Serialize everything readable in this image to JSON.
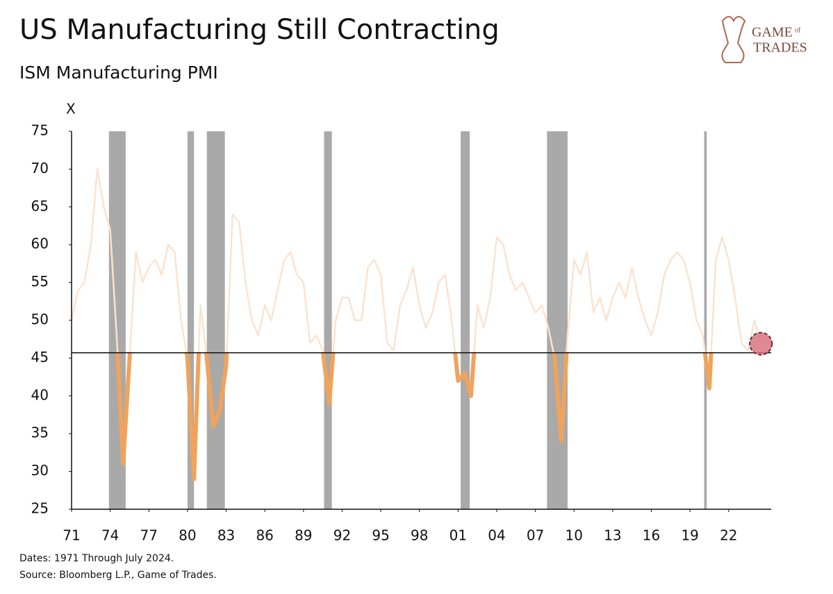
{
  "chart_data": {
    "type": "line",
    "title": "US Manufacturing Still Contracting",
    "subtitle": "ISM Manufacturing PMI",
    "y_label": "X",
    "footnotes": [
      "Dates: 1971 Through July 2024.",
      "Source: Bloomberg L.P., Game of Trades."
    ],
    "logo": {
      "top": "GAME",
      "small": "of",
      "bottom": "TRADES"
    },
    "xlim": [
      1971,
      2025.3
    ],
    "ylim": [
      25,
      75
    ],
    "yticks": [
      25,
      30,
      35,
      40,
      45,
      50,
      55,
      60,
      65,
      70,
      75
    ],
    "xticks": [
      {
        "value": 1971,
        "label": "71"
      },
      {
        "value": 1974,
        "label": "74"
      },
      {
        "value": 1977,
        "label": "77"
      },
      {
        "value": 1980,
        "label": "80"
      },
      {
        "value": 1983,
        "label": "83"
      },
      {
        "value": 1986,
        "label": "86"
      },
      {
        "value": 1989,
        "label": "89"
      },
      {
        "value": 1992,
        "label": "92"
      },
      {
        "value": 1995,
        "label": "95"
      },
      {
        "value": 1998,
        "label": "98"
      },
      {
        "value": 2001,
        "label": "01"
      },
      {
        "value": 2004,
        "label": "04"
      },
      {
        "value": 2007,
        "label": "07"
      },
      {
        "value": 2010,
        "label": "10"
      },
      {
        "value": 2013,
        "label": "13"
      },
      {
        "value": 2016,
        "label": "16"
      },
      {
        "value": 2019,
        "label": "19"
      },
      {
        "value": 2022,
        "label": "22"
      }
    ],
    "reference_line": 45.7,
    "recessions": [
      [
        1973.9,
        1975.2
      ],
      [
        1980.0,
        1980.5
      ],
      [
        1981.5,
        1982.9
      ],
      [
        1990.6,
        1991.2
      ],
      [
        2001.2,
        2001.9
      ],
      [
        2007.9,
        2009.5
      ],
      [
        2020.1,
        2020.3
      ]
    ],
    "recession_color": "#a9a9a9",
    "line_color": "#fbe3d0",
    "highlight_color": "#f0a35c",
    "point_color": "#d9747f",
    "x": [
      1971,
      1971.5,
      1972,
      1972.5,
      1973,
      1973.5,
      1974,
      1974.5,
      1975,
      1975.5,
      1976,
      1976.5,
      1977,
      1977.5,
      1978,
      1978.5,
      1979,
      1979.5,
      1980,
      1980.5,
      1981,
      1981.5,
      1982,
      1982.5,
      1983,
      1983.5,
      1984,
      1984.5,
      1985,
      1985.5,
      1986,
      1986.5,
      1987,
      1987.5,
      1988,
      1988.5,
      1989,
      1989.5,
      1990,
      1990.5,
      1991,
      1991.5,
      1992,
      1992.5,
      1993,
      1993.5,
      1994,
      1994.5,
      1995,
      1995.5,
      1996,
      1996.5,
      1997,
      1997.5,
      1998,
      1998.5,
      1999,
      1999.5,
      2000,
      2000.5,
      2001,
      2001.5,
      2002,
      2002.5,
      2003,
      2003.5,
      2004,
      2004.5,
      2005,
      2005.5,
      2006,
      2006.5,
      2007,
      2007.5,
      2008,
      2008.5,
      2009,
      2009.5,
      2010,
      2010.5,
      2011,
      2011.5,
      2012,
      2012.5,
      2013,
      2013.5,
      2014,
      2014.5,
      2015,
      2015.5,
      2016,
      2016.5,
      2017,
      2017.5,
      2018,
      2018.5,
      2019,
      2019.5,
      2020,
      2020.5,
      2021,
      2021.5,
      2022,
      2022.5,
      2023,
      2023.5,
      2024,
      2024.5
    ],
    "values": [
      50,
      54,
      55,
      60,
      70,
      65,
      62,
      48,
      31,
      45,
      59,
      55,
      57,
      58,
      56,
      60,
      59,
      50,
      45,
      29,
      52,
      45,
      36,
      38,
      44,
      64,
      63,
      55,
      50,
      48,
      52,
      50,
      54,
      58,
      59,
      56,
      55,
      47,
      48,
      46,
      39,
      50,
      53,
      53,
      50,
      50,
      57,
      58,
      56,
      47,
      46,
      52,
      54,
      57,
      52,
      49,
      51,
      55,
      56,
      50,
      42,
      43,
      40,
      52,
      49,
      53,
      61,
      60,
      56,
      54,
      55,
      53,
      51,
      52,
      49,
      45,
      34,
      48,
      58,
      56,
      59,
      51,
      53,
      50,
      53,
      55,
      53,
      57,
      53,
      50,
      48,
      51,
      56,
      58,
      59,
      58,
      55,
      50,
      48,
      41,
      58,
      61,
      58,
      53,
      47,
      46,
      50,
      46.9
    ]
  }
}
